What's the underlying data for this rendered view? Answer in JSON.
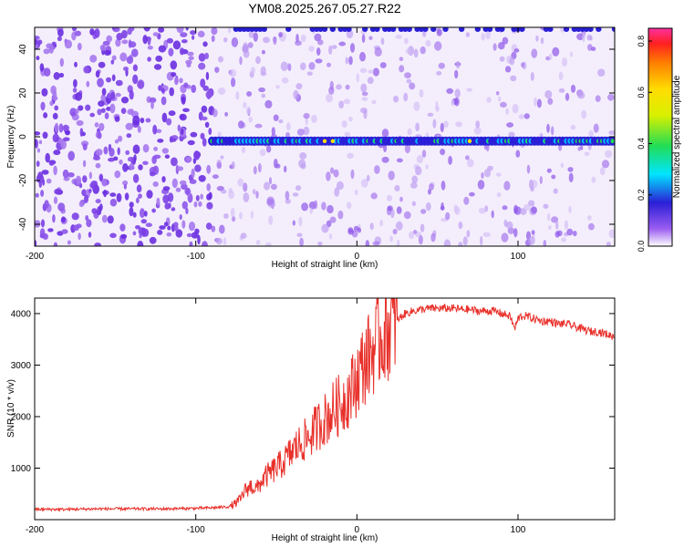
{
  "title": "YM08.2025.267.05.27.R22",
  "colors": {
    "snr_line": "#e8302a",
    "spectrum_main": "#6a2ee0",
    "spectrum_light": "#c9b0f2",
    "band_core": "#2a1fd6",
    "band_peak": "#22dd55",
    "band_max": "#ffdd00"
  },
  "chart_data": [
    {
      "type": "heatmap",
      "title": "YM08.2025.267.05.27.R22",
      "xlabel": "Height of straight line (km)",
      "ylabel": "Frequency (Hz)",
      "xlim": [
        -200,
        160
      ],
      "ylim": [
        -50,
        50
      ],
      "xticks": [
        -200,
        -100,
        0,
        100
      ],
      "xtick_labels": [
        "-200",
        "-100",
        "0",
        "100"
      ],
      "yticks": [
        -40,
        -20,
        0,
        20,
        40
      ],
      "ytick_labels": [
        "-40",
        "-20",
        "0",
        "20",
        "40"
      ],
      "signal_band": {
        "frequency_hz": -2,
        "x_start_km": -90,
        "x_end_km": 160,
        "peak_amplitude": 0.6
      },
      "colorbar": {
        "label": "Normalized spectral amplitude",
        "range": [
          0,
          0.85
        ],
        "ticks": [
          0.0,
          0.2,
          0.4,
          0.6,
          0.8
        ],
        "tick_labels": [
          "0.0",
          "0.2",
          "0.4",
          "0.6",
          "0.8"
        ],
        "colormap": [
          "#ffffff",
          "#9a5cf0",
          "#2a1fd6",
          "#00e5ff",
          "#22dd55",
          "#d8f000",
          "#ffdd00",
          "#ff8000",
          "#ff2020",
          "#ff30a0"
        ]
      }
    },
    {
      "type": "line",
      "xlabel": "Height of straight line (km)",
      "ylabel": "SNR (10 * v/v)",
      "xlim": [
        -200,
        160
      ],
      "ylim": [
        0,
        4300
      ],
      "xticks": [
        -200,
        -100,
        0,
        100
      ],
      "xtick_labels": [
        "-200",
        "-100",
        "0",
        "100"
      ],
      "yticks": [
        1000,
        2000,
        3000,
        4000
      ],
      "ytick_labels": [
        "1000",
        "2000",
        "3000",
        "4000"
      ],
      "series": [
        {
          "name": "SNR",
          "x": [
            -200,
            -180,
            -160,
            -140,
            -120,
            -100,
            -90,
            -80,
            -76,
            -72,
            -70,
            -66,
            -62,
            -58,
            -54,
            -50,
            -46,
            -42,
            -38,
            -34,
            -30,
            -26,
            -22,
            -18,
            -14,
            -10,
            -6,
            -2,
            0,
            2,
            6,
            10,
            14,
            18,
            22,
            26,
            30,
            35,
            40,
            45,
            50,
            55,
            60,
            65,
            70,
            75,
            80,
            85,
            90,
            95,
            98,
            100,
            102,
            105,
            110,
            115,
            120,
            125,
            130,
            135,
            140,
            145,
            150,
            155,
            160
          ],
          "values": [
            200,
            200,
            210,
            210,
            210,
            220,
            230,
            250,
            300,
            400,
            550,
            650,
            600,
            800,
            900,
            1000,
            1100,
            1250,
            1400,
            1500,
            1600,
            1750,
            1900,
            2000,
            2150,
            2250,
            2400,
            2600,
            2750,
            2900,
            3100,
            3300,
            3500,
            3650,
            3800,
            3900,
            4000,
            4050,
            4080,
            4100,
            4100,
            4100,
            4100,
            4080,
            4080,
            4050,
            4050,
            4050,
            4000,
            3950,
            3700,
            3900,
            3950,
            3950,
            3900,
            3850,
            3850,
            3800,
            3800,
            3750,
            3700,
            3650,
            3650,
            3600,
            3550
          ]
        }
      ]
    }
  ]
}
